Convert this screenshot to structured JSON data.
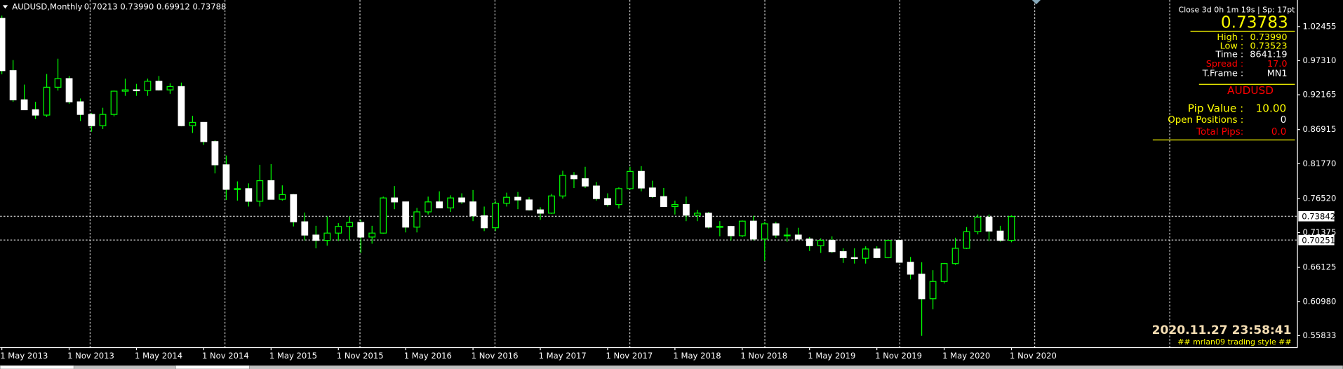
{
  "header": {
    "symbol": "AUDUSD,Monthly",
    "ohlc": "0.70213 0.73990 0.69912 0.73788"
  },
  "panel": {
    "countdown": "Close 3d 0h 1m 19s | Sp: 17pt",
    "price": "0.73783",
    "rows": [
      {
        "label": "High :",
        "value": "0.73990"
      },
      {
        "label": "Low :",
        "value": "0.73523"
      },
      {
        "label": "Time :",
        "value": "8641:19"
      },
      {
        "label": "Spread :",
        "value": "17.0"
      },
      {
        "label": "T.Frame :",
        "value": "MN1"
      }
    ],
    "symbol": "AUDUSD",
    "pip_value": {
      "label": "Pip Value :",
      "value": "10.00"
    },
    "open_positions": {
      "label": "Open Positions :",
      "value": "0"
    },
    "total_pips": {
      "label": "Total Pips:",
      "value": "0.0"
    },
    "clock": "2020.11.27 23:58:41",
    "signature": "## mrlan09 trading style ##"
  },
  "chart_data": {
    "type": "candlestick",
    "categories": [
      "1 May 2013",
      null,
      null,
      null,
      null,
      null,
      "1 Nov 2013",
      null,
      null,
      null,
      null,
      null,
      "1 May 2014",
      null,
      null,
      null,
      null,
      null,
      "1 Nov 2014",
      null,
      null,
      null,
      null,
      null,
      "1 May 2015",
      null,
      null,
      null,
      null,
      null,
      "1 Nov 2015",
      null,
      null,
      null,
      null,
      null,
      "1 May 2016",
      null,
      null,
      null,
      null,
      null,
      "1 Nov 2016",
      null,
      null,
      null,
      null,
      null,
      "1 May 2017",
      null,
      null,
      null,
      null,
      null,
      "1 Nov 2017",
      null,
      null,
      null,
      null,
      null,
      "1 May 2018",
      null,
      null,
      null,
      null,
      null,
      "1 Nov 2018",
      null,
      null,
      null,
      null,
      null,
      "1 May 2019",
      null,
      null,
      null,
      null,
      null,
      "1 Nov 2019",
      null,
      null,
      null,
      null,
      null,
      "1 May 2020",
      null,
      null,
      null,
      null,
      null,
      "1 Nov 2020"
    ],
    "open": [
      1.0368,
      0.958,
      0.914,
      0.899,
      0.891,
      0.933,
      0.946,
      0.911,
      0.892,
      0.875,
      0.892,
      0.927,
      0.929,
      0.928,
      0.942,
      0.929,
      0.934,
      0.875,
      0.88,
      0.851,
      0.816,
      0.779,
      0.78,
      0.761,
      0.792,
      0.764,
      0.771,
      0.73,
      0.71,
      0.702,
      0.713,
      0.723,
      0.729,
      0.707,
      0.713,
      0.766,
      0.76,
      0.722,
      0.745,
      0.76,
      0.751,
      0.766,
      0.76,
      0.739,
      0.721,
      0.758,
      0.767,
      0.763,
      0.748,
      0.743,
      0.769,
      0.8,
      0.795,
      0.784,
      0.765,
      0.756,
      0.78,
      0.806,
      0.781,
      0.768,
      0.753,
      0.756,
      0.74,
      0.743,
      0.722,
      0.723,
      0.709,
      0.731,
      0.704,
      0.727,
      0.71,
      0.71,
      0.704,
      0.694,
      0.702,
      0.685,
      0.676,
      0.675,
      0.689,
      0.676,
      0.702,
      0.669,
      0.651,
      0.614,
      0.64,
      0.667,
      0.69,
      0.715,
      0.737,
      0.716,
      0.70213
    ],
    "high": [
      1.041,
      0.974,
      0.937,
      0.911,
      0.953,
      0.976,
      0.95,
      0.916,
      0.894,
      0.902,
      0.928,
      0.946,
      0.938,
      0.946,
      0.95,
      0.939,
      0.94,
      0.89,
      0.88,
      0.853,
      0.83,
      0.791,
      0.788,
      0.816,
      0.817,
      0.785,
      0.772,
      0.744,
      0.724,
      0.738,
      0.728,
      0.738,
      0.733,
      0.724,
      0.768,
      0.784,
      0.76,
      0.751,
      0.768,
      0.776,
      0.77,
      0.773,
      0.778,
      0.753,
      0.762,
      0.774,
      0.775,
      0.767,
      0.752,
      0.772,
      0.807,
      0.805,
      0.813,
      0.79,
      0.773,
      0.782,
      0.813,
      0.814,
      0.792,
      0.781,
      0.762,
      0.768,
      0.748,
      0.745,
      0.731,
      0.724,
      0.732,
      0.739,
      0.73,
      0.73,
      0.721,
      0.721,
      0.707,
      0.705,
      0.708,
      0.69,
      0.69,
      0.693,
      0.693,
      0.703,
      0.703,
      0.677,
      0.669,
      0.657,
      0.668,
      0.706,
      0.722,
      0.741,
      0.741,
      0.724,
      0.7399
    ],
    "low": [
      0.9527,
      0.911,
      0.899,
      0.885,
      0.888,
      0.928,
      0.908,
      0.882,
      0.866,
      0.87,
      0.889,
      0.92,
      0.92,
      0.92,
      0.928,
      0.923,
      0.874,
      0.864,
      0.846,
      0.803,
      0.763,
      0.762,
      0.753,
      0.753,
      0.764,
      0.762,
      0.723,
      0.702,
      0.69,
      0.694,
      0.701,
      0.702,
      0.683,
      0.697,
      0.712,
      0.749,
      0.714,
      0.714,
      0.741,
      0.753,
      0.745,
      0.757,
      0.731,
      0.716,
      0.716,
      0.753,
      0.749,
      0.747,
      0.733,
      0.742,
      0.765,
      0.781,
      0.781,
      0.762,
      0.753,
      0.75,
      0.779,
      0.776,
      0.766,
      0.753,
      0.741,
      0.731,
      0.731,
      0.72,
      0.708,
      0.702,
      0.707,
      0.702,
      0.671,
      0.706,
      0.7,
      0.703,
      0.686,
      0.683,
      0.683,
      0.668,
      0.667,
      0.667,
      0.675,
      0.675,
      0.668,
      0.643,
      0.558,
      0.598,
      0.637,
      0.665,
      0.689,
      0.711,
      0.701,
      0.7,
      0.69912
    ],
    "close": [
      0.958,
      0.914,
      0.899,
      0.891,
      0.933,
      0.946,
      0.911,
      0.892,
      0.875,
      0.892,
      0.927,
      0.929,
      0.928,
      0.942,
      0.929,
      0.934,
      0.875,
      0.88,
      0.851,
      0.816,
      0.779,
      0.78,
      0.761,
      0.792,
      0.764,
      0.771,
      0.73,
      0.71,
      0.702,
      0.713,
      0.723,
      0.729,
      0.707,
      0.713,
      0.766,
      0.76,
      0.722,
      0.745,
      0.76,
      0.751,
      0.766,
      0.76,
      0.739,
      0.721,
      0.758,
      0.767,
      0.763,
      0.748,
      0.743,
      0.769,
      0.8,
      0.795,
      0.784,
      0.765,
      0.756,
      0.78,
      0.806,
      0.781,
      0.768,
      0.753,
      0.756,
      0.74,
      0.743,
      0.722,
      0.723,
      0.709,
      0.731,
      0.704,
      0.727,
      0.71,
      0.71,
      0.704,
      0.694,
      0.702,
      0.685,
      0.676,
      0.675,
      0.689,
      0.676,
      0.702,
      0.669,
      0.651,
      0.614,
      0.64,
      0.667,
      0.69,
      0.715,
      0.737,
      0.716,
      0.702,
      0.73788
    ],
    "up_color": "#00ff00",
    "down_color": "#ffffff",
    "ylim": [
      0.54025,
      1.06459
    ],
    "yticks": [
      1.02455,
      {
        "value": 0.9731,
        "label": "0.97310"
      },
      0.92165,
      0.86915,
      {
        "value": 0.8177,
        "label": "0.81770"
      },
      {
        "value": 0.7652,
        "label": "0.76520"
      },
      0.71375,
      0.66125,
      {
        "value": 0.6098,
        "label": "0.60980"
      },
      0.55833
    ],
    "price_lines": [
      0.73842,
      0.70251
    ],
    "grid": true
  }
}
